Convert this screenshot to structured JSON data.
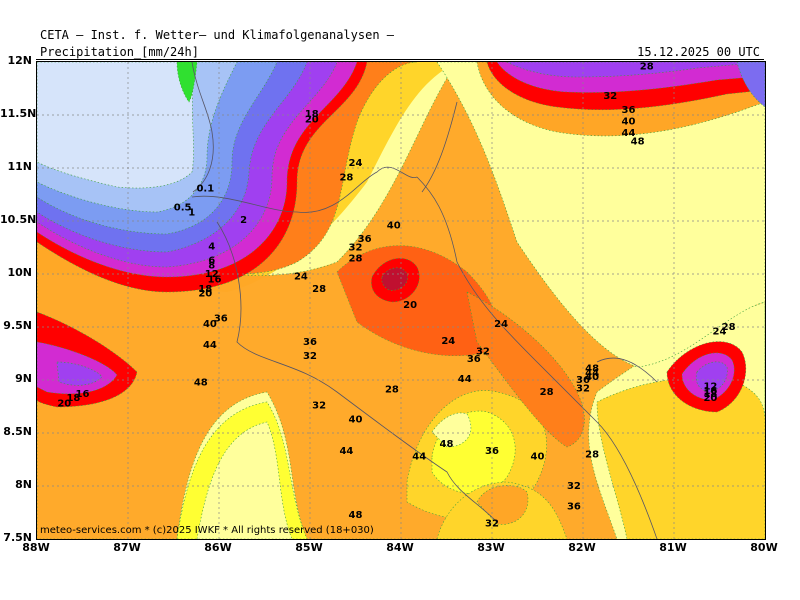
{
  "header": {
    "title": "CETA — Inst. f. Wetter— und Klimafolgenanalysen —",
    "field": "Precipitation_[mm/24h]",
    "datetime": "15.12.2025 00 UTC"
  },
  "footer": {
    "copyright": "meteo-services.com * (c)2025 IWKF * All rights reserved (18+030)"
  },
  "axes": {
    "lat_labels": [
      "12N",
      "11.5N",
      "11N",
      "10.5N",
      "10N",
      "9.5N",
      "9N",
      "8.5N",
      "8N",
      "7.5N"
    ],
    "lon_labels": [
      "88W",
      "87W",
      "86W",
      "85W",
      "84W",
      "83W",
      "82W",
      "81W",
      "80W"
    ]
  },
  "map_data": {
    "region": "Central America (Nicaragua / Costa Rica / Panama)",
    "projection": "lat-lon",
    "lat_range": [
      7.5,
      12
    ],
    "lon_range": [
      -88,
      -80
    ],
    "gridlines": "dotted",
    "contour_labels": [
      {
        "text": "0.1",
        "lon": -86.15,
        "lat": 10.78
      },
      {
        "text": "0.5",
        "lon": -86.4,
        "lat": 10.6
      },
      {
        "text": "1",
        "lon": -86.3,
        "lat": 10.55
      },
      {
        "text": "2",
        "lon": -85.73,
        "lat": 10.48
      },
      {
        "text": "4",
        "lon": -86.08,
        "lat": 10.23
      },
      {
        "text": "6",
        "lon": -86.08,
        "lat": 10.1
      },
      {
        "text": "8",
        "lon": -86.08,
        "lat": 10.05
      },
      {
        "text": "12",
        "lon": -86.08,
        "lat": 9.97
      },
      {
        "text": "16",
        "lon": -86.05,
        "lat": 9.92
      },
      {
        "text": "18",
        "lon": -86.15,
        "lat": 9.83
      },
      {
        "text": "20",
        "lon": -86.15,
        "lat": 9.79
      },
      {
        "text": "18",
        "lon": -84.98,
        "lat": 11.48
      },
      {
        "text": "20",
        "lon": -84.98,
        "lat": 11.43
      },
      {
        "text": "24",
        "lon": -84.5,
        "lat": 11.02
      },
      {
        "text": "28",
        "lon": -84.6,
        "lat": 10.88
      },
      {
        "text": "40",
        "lon": -84.08,
        "lat": 10.43
      },
      {
        "text": "36",
        "lon": -84.4,
        "lat": 10.3
      },
      {
        "text": "32",
        "lon": -84.5,
        "lat": 10.22
      },
      {
        "text": "28",
        "lon": -84.5,
        "lat": 10.12
      },
      {
        "text": "24",
        "lon": -85.1,
        "lat": 9.95
      },
      {
        "text": "28",
        "lon": -84.9,
        "lat": 9.83
      },
      {
        "text": "20",
        "lon": -83.9,
        "lat": 9.68
      },
      {
        "text": "36",
        "lon": -85.98,
        "lat": 9.55
      },
      {
        "text": "40",
        "lon": -86.1,
        "lat": 9.5
      },
      {
        "text": "44",
        "lon": -86.1,
        "lat": 9.3
      },
      {
        "text": "48",
        "lon": -86.2,
        "lat": 8.95
      },
      {
        "text": "36",
        "lon": -85.0,
        "lat": 9.33
      },
      {
        "text": "32",
        "lon": -85.0,
        "lat": 9.2
      },
      {
        "text": "32",
        "lon": -84.9,
        "lat": 8.73
      },
      {
        "text": "40",
        "lon": -84.5,
        "lat": 8.6
      },
      {
        "text": "44",
        "lon": -84.6,
        "lat": 8.3
      },
      {
        "text": "48",
        "lon": -84.5,
        "lat": 7.7
      },
      {
        "text": "28",
        "lon": -84.1,
        "lat": 8.88
      },
      {
        "text": "24",
        "lon": -83.48,
        "lat": 9.34
      },
      {
        "text": "24",
        "lon": -82.9,
        "lat": 9.5
      },
      {
        "text": "32",
        "lon": -83.1,
        "lat": 9.24
      },
      {
        "text": "36",
        "lon": -83.2,
        "lat": 9.17
      },
      {
        "text": "44",
        "lon": -83.3,
        "lat": 8.98
      },
      {
        "text": "48",
        "lon": -83.5,
        "lat": 8.37
      },
      {
        "text": "44",
        "lon": -83.8,
        "lat": 8.25
      },
      {
        "text": "36",
        "lon": -83.0,
        "lat": 8.3
      },
      {
        "text": "40",
        "lon": -82.5,
        "lat": 8.25
      },
      {
        "text": "28",
        "lon": -82.4,
        "lat": 8.86
      },
      {
        "text": "28",
        "lon": -81.9,
        "lat": 8.27
      },
      {
        "text": "32",
        "lon": -82.1,
        "lat": 7.97
      },
      {
        "text": "36",
        "lon": -82.1,
        "lat": 7.78
      },
      {
        "text": "32",
        "lon": -83.0,
        "lat": 7.62
      },
      {
        "text": "36",
        "lon": -82.0,
        "lat": 8.97
      },
      {
        "text": "32",
        "lon": -82.0,
        "lat": 8.89
      },
      {
        "text": "40",
        "lon": -81.9,
        "lat": 9.0
      },
      {
        "text": "44",
        "lon": -81.9,
        "lat": 9.04
      },
      {
        "text": "48",
        "lon": -81.9,
        "lat": 9.08
      },
      {
        "text": "24",
        "lon": -80.5,
        "lat": 9.43
      },
      {
        "text": "28",
        "lon": -80.4,
        "lat": 9.47
      },
      {
        "text": "12",
        "lon": -80.6,
        "lat": 8.91
      },
      {
        "text": "16",
        "lon": -80.6,
        "lat": 8.87
      },
      {
        "text": "18",
        "lon": -80.6,
        "lat": 8.84
      },
      {
        "text": "20",
        "lon": -80.6,
        "lat": 8.8
      },
      {
        "text": "20",
        "lon": -87.7,
        "lat": 8.75
      },
      {
        "text": "18",
        "lon": -87.6,
        "lat": 8.8
      },
      {
        "text": "16",
        "lon": -87.5,
        "lat": 8.84
      },
      {
        "text": "24",
        "lon": -81.3,
        "lat": 12.03
      },
      {
        "text": "28",
        "lon": -81.3,
        "lat": 11.93
      },
      {
        "text": "32",
        "lon": -81.7,
        "lat": 11.65
      },
      {
        "text": "36",
        "lon": -81.5,
        "lat": 11.52
      },
      {
        "text": "40",
        "lon": -81.5,
        "lat": 11.41
      },
      {
        "text": "44",
        "lon": -81.5,
        "lat": 11.3
      },
      {
        "text": "48",
        "lon": -81.4,
        "lat": 11.22
      }
    ]
  },
  "colors": {
    "background_low": "#ffff9c",
    "yellow": "#ffff33",
    "gold": "#ffd52a",
    "orange": "#ffa626",
    "dark_orange": "#ff7f1a",
    "red_orange": "#ff5511",
    "red": "#ff0000",
    "magenta": "#d22bd2",
    "purple": "#a040f0",
    "blue_dark": "#6f72f0",
    "blue": "#7c9cf2",
    "blue_light": "#a7c3f6",
    "blue_pale": "#d6e4fa",
    "green": "#30e030"
  }
}
